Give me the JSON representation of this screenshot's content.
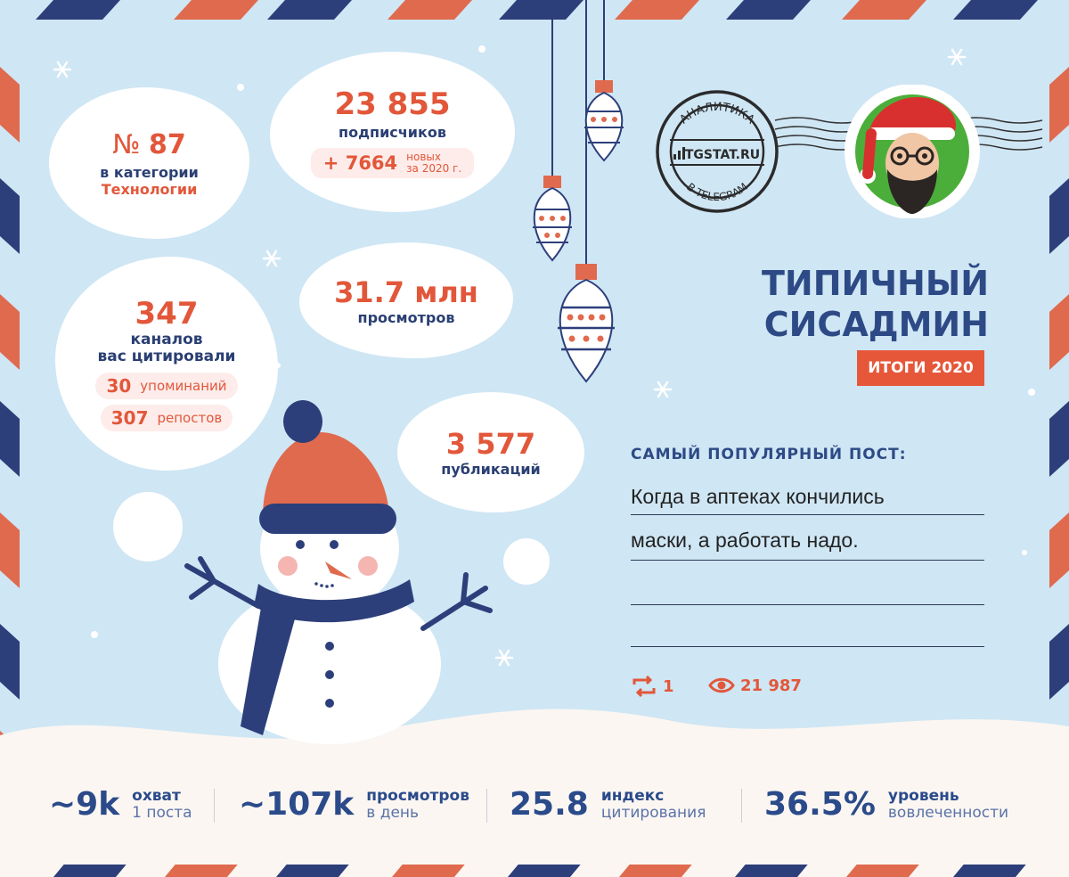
{
  "rank": {
    "prefix": "№",
    "number": "87",
    "line1": "в категории",
    "line2": "Технологии"
  },
  "subscribers": {
    "value": "23 855",
    "label": "подписчиков",
    "delta": "+ 7664",
    "delta_line1": "новых",
    "delta_line2": "за 2020 г."
  },
  "citations": {
    "value": "347",
    "line1": "каналов",
    "line2": "вас цитировали",
    "mentions_value": "30",
    "mentions_label": "упоминаний",
    "reposts_value": "307",
    "reposts_label": "репостов"
  },
  "views": {
    "value": "31.7 млн",
    "label": "просмотров"
  },
  "publications": {
    "value": "3 577",
    "label": "публикаций"
  },
  "stamp": {
    "top_text": "АНАЛИТИКА",
    "site": "TGSTAT.RU",
    "bottom_text": "В TELEGRAM"
  },
  "channel": {
    "title_line1": "ТИПИЧНЫЙ",
    "title_line2": "СИСАДМИН",
    "badge": "ИТОГИ 2020"
  },
  "popular_post": {
    "heading": "САМЫЙ ПОПУЛЯРНЫЙ ПОСТ:",
    "line1": "Когда в аптеках кончились",
    "line2": "маски, а работать надо.",
    "reposts": "1",
    "views": "21 987"
  },
  "stats": [
    {
      "value": "~9k",
      "label1": "охват",
      "label2": "1 поста"
    },
    {
      "value": "~107k",
      "label1": "просмотров",
      "label2": "в день"
    },
    {
      "value": "25.8",
      "label1": "индекс",
      "label2": "цитирования"
    },
    {
      "value": "36.5%",
      "label1": "уровень",
      "label2": "вовлеченности"
    }
  ],
  "colors": {
    "background": "#cfe6f4",
    "navy": "#2d4a86",
    "orange": "#e2573a",
    "stripe_red": "#e06a4e",
    "stripe_blue": "#2d3f7a",
    "snow": "#fbf6f2"
  }
}
